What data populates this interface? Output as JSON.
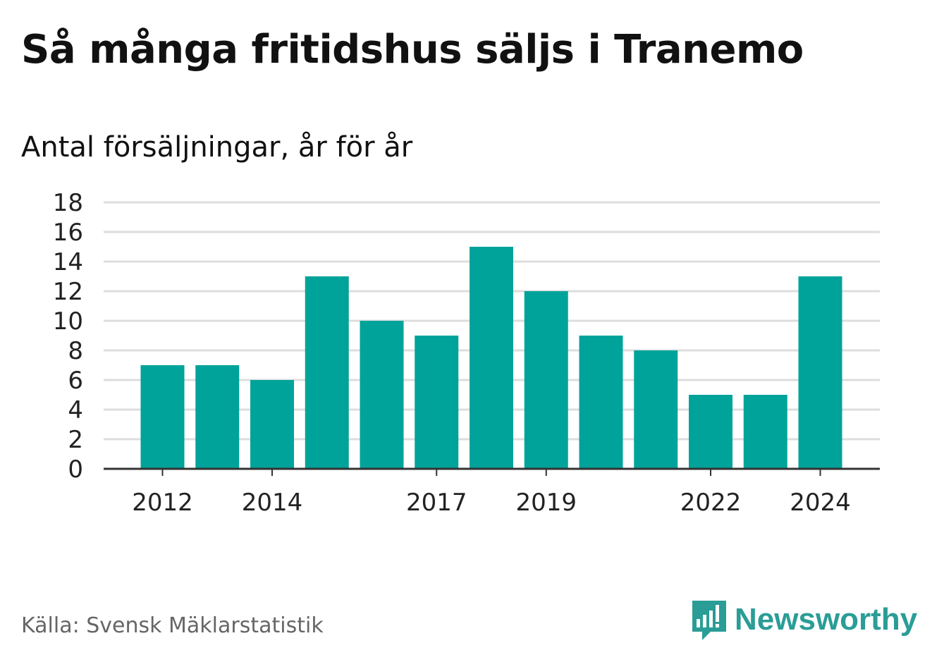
{
  "header": {
    "title": "Så många fritidshus säljs i Tranemo",
    "subtitle": "Antal försäljningar, år för år"
  },
  "footer": {
    "source": "Källa: Svensk Mäklarstatistik",
    "brand": "Newsworthy"
  },
  "colors": {
    "bar": "#00a39a",
    "grid": "#dddddd",
    "axis": "#333333",
    "brand": "#2a9d96"
  },
  "chart_data": {
    "type": "bar",
    "title": "Så många fritidshus säljs i Tranemo",
    "subtitle": "Antal försäljningar, år för år",
    "categories": [
      "2012",
      "2013",
      "2014",
      "2015",
      "2016",
      "2017",
      "2018",
      "2019",
      "2020",
      "2021",
      "2022",
      "2023",
      "2024"
    ],
    "values": [
      7,
      7,
      6,
      13,
      10,
      9,
      15,
      12,
      9,
      8,
      5,
      5,
      13
    ],
    "x_tick_labels": [
      "2012",
      "2014",
      "2017",
      "2019",
      "2022",
      "2024"
    ],
    "y_ticks": [
      0,
      2,
      4,
      6,
      8,
      10,
      12,
      14,
      16,
      18
    ],
    "ylim": [
      0,
      18
    ],
    "xlabel": "",
    "ylabel": "",
    "grid": true,
    "legend": "none"
  }
}
